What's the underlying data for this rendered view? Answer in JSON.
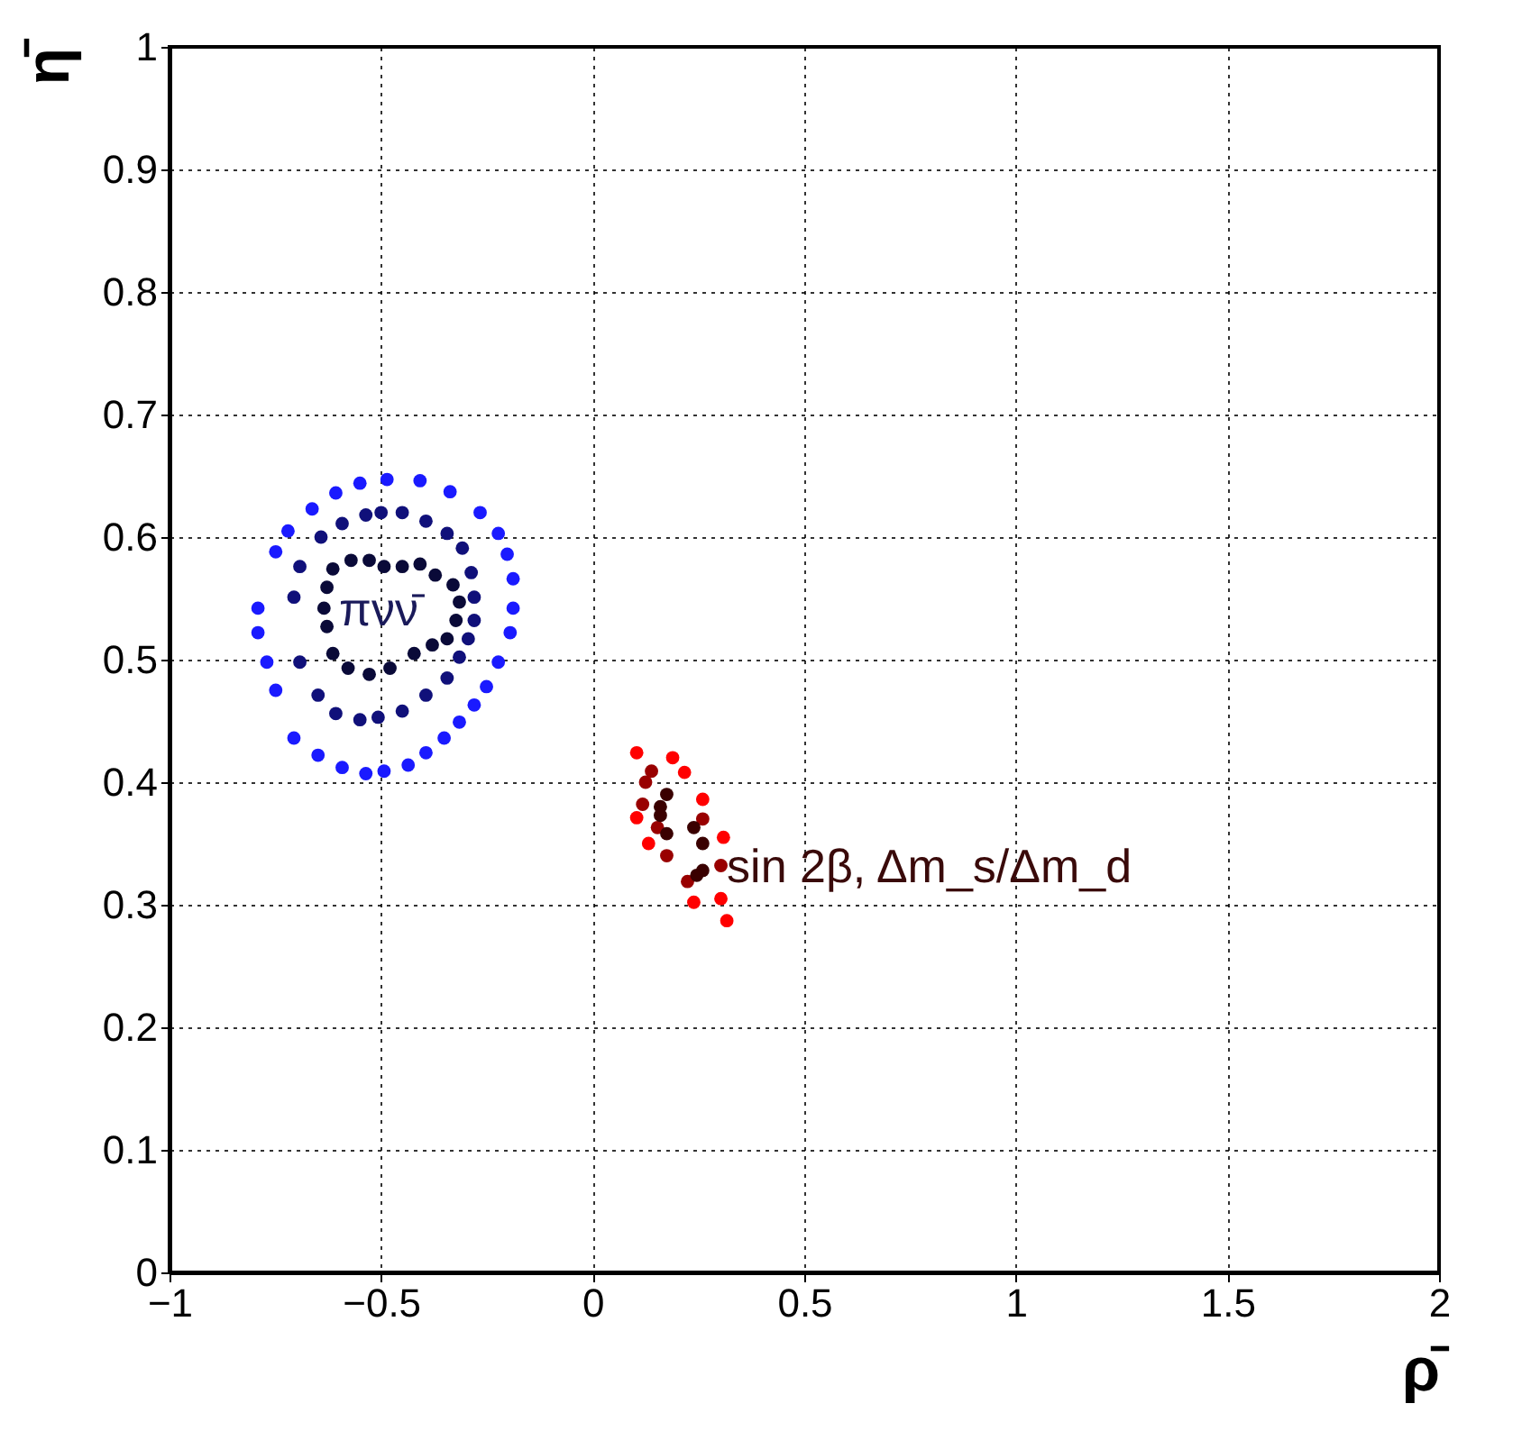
{
  "chart_data": {
    "type": "scatter",
    "xlabel": "ρ̄",
    "ylabel": "η̄",
    "xlim": [
      -1,
      2
    ],
    "ylim": [
      0,
      1
    ],
    "xticks": [
      -1,
      -0.5,
      0,
      0.5,
      1,
      1.5,
      2
    ],
    "yticks": [
      0,
      0.1,
      0.2,
      0.3,
      0.4,
      0.5,
      0.6,
      0.7,
      0.8,
      0.9,
      1
    ],
    "grid": true,
    "marker": "circle",
    "annotations": [
      "πνν̄",
      {
        "text": "sin 2β, Δm_s/Δm_d",
        "x": 0.317,
        "y": 0.33
      }
    ],
    "series": [
      {
        "color": "#1a1aff",
        "x": [
          -0.749,
          -0.72,
          -0.663,
          -0.607,
          -0.55,
          -0.486,
          -0.408,
          -0.337,
          -0.266,
          -0.223,
          -0.202,
          -0.188,
          -0.188,
          -0.195,
          -0.223,
          -0.251,
          -0.28,
          -0.315,
          -0.351,
          -0.394,
          -0.436,
          -0.493,
          -0.536,
          -0.592,
          -0.649,
          -0.706,
          -0.749,
          -0.77,
          -0.791,
          -0.791
        ],
        "values": [
          0.588,
          0.605,
          0.623,
          0.636,
          0.644,
          0.647,
          0.646,
          0.637,
          0.62,
          0.603,
          0.586,
          0.566,
          0.542,
          0.522,
          0.498,
          0.478,
          0.463,
          0.449,
          0.436,
          0.424,
          0.414,
          0.409,
          0.407,
          0.412,
          0.422,
          0.436,
          0.475,
          0.498,
          0.522,
          0.542
        ]
      },
      {
        "color": "#10107a",
        "x": [
          -0.692,
          -0.642,
          -0.592,
          -0.536,
          -0.5,
          -0.45,
          -0.394,
          -0.344,
          -0.308,
          -0.287,
          -0.28,
          -0.28,
          -0.294,
          -0.315,
          -0.344,
          -0.394,
          -0.45,
          -0.507,
          -0.55,
          -0.607,
          -0.649,
          -0.692,
          -0.706
        ],
        "values": [
          0.576,
          0.6,
          0.611,
          0.618,
          0.62,
          0.62,
          0.613,
          0.603,
          0.591,
          0.571,
          0.551,
          0.532,
          0.517,
          0.502,
          0.485,
          0.471,
          0.458,
          0.453,
          0.451,
          0.456,
          0.471,
          0.498,
          0.551
        ]
      },
      {
        "color": "#0a0a38",
        "x": [
          -0.628,
          -0.614,
          -0.571,
          -0.528,
          -0.493,
          -0.45,
          -0.408,
          -0.372,
          -0.33,
          -0.315,
          -0.323,
          -0.344,
          -0.379,
          -0.422,
          -0.479,
          -0.528,
          -0.578,
          -0.614,
          -0.628,
          -0.635
        ],
        "values": [
          0.559,
          0.574,
          0.581,
          0.581,
          0.576,
          0.576,
          0.578,
          0.569,
          0.561,
          0.547,
          0.532,
          0.517,
          0.512,
          0.505,
          0.493,
          0.488,
          0.493,
          0.505,
          0.527,
          0.542
        ]
      },
      {
        "color": "#ff0000",
        "x": [
          0.104,
          0.189,
          0.217,
          0.104,
          0.26,
          0.132,
          0.309,
          0.239,
          0.303,
          0.317
        ],
        "values": [
          0.424,
          0.42,
          0.408,
          0.371,
          0.386,
          0.35,
          0.355,
          0.302,
          0.305,
          0.287
        ]
      },
      {
        "color": "#990000",
        "x": [
          0.139,
          0.125,
          0.118,
          0.153,
          0.175,
          0.26,
          0.303,
          0.224
        ],
        "values": [
          0.409,
          0.4,
          0.382,
          0.363,
          0.34,
          0.37,
          0.332,
          0.319
        ]
      },
      {
        "color": "#3a0000",
        "x": [
          0.175,
          0.16,
          0.16,
          0.175,
          0.239,
          0.26,
          0.26,
          0.246
        ],
        "values": [
          0.39,
          0.38,
          0.373,
          0.358,
          0.363,
          0.35,
          0.328,
          0.324
        ]
      }
    ]
  }
}
